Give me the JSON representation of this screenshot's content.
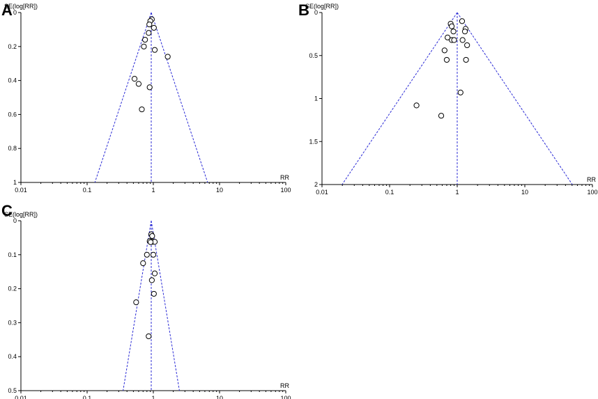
{
  "chart_data": [
    {
      "panel": "A",
      "type": "scatter",
      "ylabel": "SE(log[RR])",
      "xlabel": "RR",
      "xscale": "log",
      "xlim": [
        0.01,
        100
      ],
      "ylim": [
        1,
        0
      ],
      "xticks": [
        "0.01",
        "0.1",
        "1",
        "10",
        "100"
      ],
      "yticks": [
        "0",
        "0.2",
        "0.4",
        "0.6",
        "0.8",
        "1"
      ],
      "pooled": 0.93,
      "points": [
        {
          "x": 0.95,
          "y": 0.04
        },
        {
          "x": 0.9,
          "y": 0.05
        },
        {
          "x": 0.87,
          "y": 0.07
        },
        {
          "x": 1.02,
          "y": 0.09
        },
        {
          "x": 0.85,
          "y": 0.12
        },
        {
          "x": 0.75,
          "y": 0.16
        },
        {
          "x": 0.72,
          "y": 0.2
        },
        {
          "x": 1.05,
          "y": 0.22
        },
        {
          "x": 1.65,
          "y": 0.26
        },
        {
          "x": 0.52,
          "y": 0.39
        },
        {
          "x": 0.6,
          "y": 0.42
        },
        {
          "x": 0.88,
          "y": 0.44
        },
        {
          "x": 0.67,
          "y": 0.57
        }
      ]
    },
    {
      "panel": "B",
      "type": "scatter",
      "ylabel": "SE(log[RR])",
      "xlabel": "RR",
      "xscale": "log",
      "xlim": [
        0.01,
        100
      ],
      "ylim": [
        2,
        0
      ],
      "xticks": [
        "0.01",
        "0.1",
        "1",
        "10",
        "100"
      ],
      "yticks": [
        "0",
        "0.5",
        "1",
        "1.5",
        "2"
      ],
      "pooled": 1.0,
      "points": [
        {
          "x": 1.18,
          "y": 0.1
        },
        {
          "x": 0.8,
          "y": 0.13
        },
        {
          "x": 0.83,
          "y": 0.16
        },
        {
          "x": 1.33,
          "y": 0.19
        },
        {
          "x": 0.88,
          "y": 0.22
        },
        {
          "x": 1.3,
          "y": 0.22
        },
        {
          "x": 0.72,
          "y": 0.29
        },
        {
          "x": 0.83,
          "y": 0.32
        },
        {
          "x": 0.9,
          "y": 0.32
        },
        {
          "x": 1.2,
          "y": 0.32
        },
        {
          "x": 1.4,
          "y": 0.38
        },
        {
          "x": 0.65,
          "y": 0.44
        },
        {
          "x": 0.7,
          "y": 0.55
        },
        {
          "x": 1.35,
          "y": 0.55
        },
        {
          "x": 1.12,
          "y": 0.93
        },
        {
          "x": 0.25,
          "y": 1.08
        },
        {
          "x": 0.58,
          "y": 1.2
        }
      ]
    },
    {
      "panel": "C",
      "type": "scatter",
      "ylabel": "SE(log[RR])",
      "xlabel": "RR",
      "xscale": "log",
      "xlim": [
        0.01,
        100
      ],
      "ylim": [
        0.5,
        0
      ],
      "xticks": [
        "0.01",
        "0.1",
        "1",
        "10",
        "100"
      ],
      "yticks": [
        "0",
        "0.1",
        "0.2",
        "0.3",
        "0.4",
        "0.5"
      ],
      "pooled": 0.93,
      "points": [
        {
          "x": 0.93,
          "y": 0.04
        },
        {
          "x": 0.96,
          "y": 0.045
        },
        {
          "x": 0.88,
          "y": 0.06
        },
        {
          "x": 0.98,
          "y": 0.062
        },
        {
          "x": 1.05,
          "y": 0.062
        },
        {
          "x": 0.91,
          "y": 0.063
        },
        {
          "x": 0.8,
          "y": 0.1
        },
        {
          "x": 1.0,
          "y": 0.1
        },
        {
          "x": 0.7,
          "y": 0.125
        },
        {
          "x": 1.05,
          "y": 0.155
        },
        {
          "x": 0.95,
          "y": 0.175
        },
        {
          "x": 1.02,
          "y": 0.215
        },
        {
          "x": 0.55,
          "y": 0.24
        },
        {
          "x": 0.85,
          "y": 0.34
        }
      ]
    }
  ]
}
